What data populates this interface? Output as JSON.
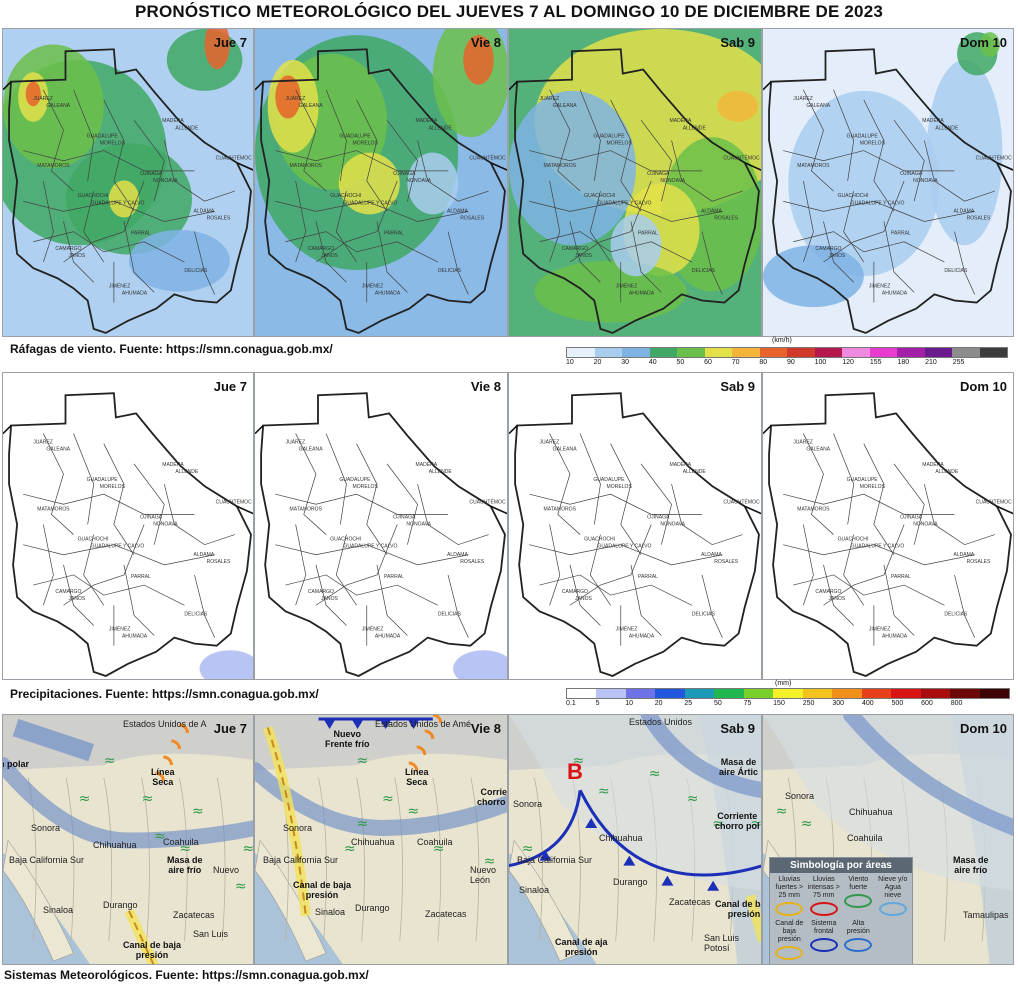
{
  "title": "PRONÓSTICO METEOROLÓGICO DEL JUEVES 7 AL DOMINGO 10 DE DICIEMBRE DE 2023",
  "days": [
    "Jue 7",
    "Vie 8",
    "Sab 9",
    "Dom 10"
  ],
  "sections": {
    "wind": {
      "source": "Ráfagas de viento.  Fuente: https://smn.conagua.gob.mx/",
      "unit": "(km/h)",
      "scale": [
        {
          "label": "10",
          "color": "#e6f0fa"
        },
        {
          "label": "20",
          "color": "#a9cdee"
        },
        {
          "label": "30",
          "color": "#7fb3e4"
        },
        {
          "label": "40",
          "color": "#3fa864"
        },
        {
          "label": "50",
          "color": "#6cbf4a"
        },
        {
          "label": "60",
          "color": "#e3e04a"
        },
        {
          "label": "70",
          "color": "#f2b53a"
        },
        {
          "label": "80",
          "color": "#e8632c"
        },
        {
          "label": "90",
          "color": "#d13a2a"
        },
        {
          "label": "100",
          "color": "#b5184f"
        },
        {
          "label": "120",
          "color": "#f08ae0"
        },
        {
          "label": "155",
          "color": "#e83bd0"
        },
        {
          "label": "180",
          "color": "#a21fa8"
        },
        {
          "label": "210",
          "color": "#6a1a8a"
        },
        {
          "label": "255",
          "color": "#8c8c8c"
        },
        {
          "label": "",
          "color": "#3c3c3c"
        }
      ]
    },
    "precip": {
      "source": "Precipitaciones.  Fuente: https://smn.conagua.gob.mx/",
      "unit": "(mm)",
      "scale": [
        {
          "label": "0.1",
          "color": "#ffffff"
        },
        {
          "label": "5",
          "color": "#b8c4f4"
        },
        {
          "label": "10",
          "color": "#6f73e8"
        },
        {
          "label": "20",
          "color": "#2457e0"
        },
        {
          "label": "25",
          "color": "#1c9bb8"
        },
        {
          "label": "50",
          "color": "#20b84e"
        },
        {
          "label": "75",
          "color": "#7ad02a"
        },
        {
          "label": "150",
          "color": "#f4f02a"
        },
        {
          "label": "250",
          "color": "#f4c21c"
        },
        {
          "label": "300",
          "color": "#f0901a"
        },
        {
          "label": "400",
          "color": "#e8401a"
        },
        {
          "label": "500",
          "color": "#d81414"
        },
        {
          "label": "600",
          "color": "#a80c0c"
        },
        {
          "label": "800",
          "color": "#6e0808"
        },
        {
          "label": "",
          "color": "#3e0404"
        }
      ]
    },
    "systems": {
      "source": "Sistemas Meteorológicos.    Fuente: https://smn.conagua.gob.mx/",
      "panels": [
        {
          "labels": [
            {
              "text": "Estados Unidos de A",
              "kind": "region"
            },
            {
              "text": "n polar",
              "kind": "bold"
            },
            {
              "text": "Línea\nSeca",
              "kind": "bold"
            },
            {
              "text": "Sonora",
              "kind": "region"
            },
            {
              "text": "Chihuahua",
              "kind": "region"
            },
            {
              "text": "Coahuila",
              "kind": "region"
            },
            {
              "text": "Masa de\naire frío",
              "kind": "bold"
            },
            {
              "text": "Nuevo",
              "kind": "region"
            },
            {
              "text": "Sinaloa",
              "kind": "region"
            },
            {
              "text": "Durango",
              "kind": "region"
            },
            {
              "text": "Zacatecas",
              "kind": "region"
            },
            {
              "text": "Canal de baja\npresión",
              "kind": "bold"
            },
            {
              "text": "San Luis",
              "kind": "region"
            },
            {
              "text": "Baja California Sur",
              "kind": "region"
            }
          ]
        },
        {
          "labels": [
            {
              "text": "Estados Unidos de Amé",
              "kind": "region"
            },
            {
              "text": "Nuevo\nFrente frío",
              "kind": "bold"
            },
            {
              "text": "Corrient\nchorro po",
              "kind": "bold"
            },
            {
              "text": "Línea\nSeca",
              "kind": "bold"
            },
            {
              "text": "Sonora",
              "kind": "region"
            },
            {
              "text": "Chihuahua",
              "kind": "region"
            },
            {
              "text": "Coahuila",
              "kind": "region"
            },
            {
              "text": "Nuevo\nLeón",
              "kind": "region"
            },
            {
              "text": "Sinaloa",
              "kind": "region"
            },
            {
              "text": "Durango",
              "kind": "region"
            },
            {
              "text": "Zacatecas",
              "kind": "region"
            },
            {
              "text": "Canal de baja\npresión",
              "kind": "bold"
            },
            {
              "text": "Baja California Sur",
              "kind": "region"
            }
          ]
        },
        {
          "labels": [
            {
              "text": "Estados Unidos",
              "kind": "region"
            },
            {
              "text": "Masa de\naire Ártic",
              "kind": "bold"
            },
            {
              "text": "B",
              "kind": "low"
            },
            {
              "text": "Sonora",
              "kind": "region"
            },
            {
              "text": "Chihuahua",
              "kind": "region"
            },
            {
              "text": "Corriente\nchorro pol",
              "kind": "bold"
            },
            {
              "text": "Sinaloa",
              "kind": "region"
            },
            {
              "text": "Durango",
              "kind": "region"
            },
            {
              "text": "Zacatecas",
              "kind": "region"
            },
            {
              "text": "Canal de baja\npresión",
              "kind": "bold"
            },
            {
              "text": "Canal de aja\npresión",
              "kind": "bold"
            },
            {
              "text": "San Luis\nPotosí",
              "kind": "region"
            },
            {
              "text": "Baja California Sur",
              "kind": "region"
            }
          ]
        },
        {
          "labels": [
            {
              "text": "Sonora",
              "kind": "region"
            },
            {
              "text": "Chihuahua",
              "kind": "region"
            },
            {
              "text": "Coahuila",
              "kind": "region"
            },
            {
              "text": "Masa de\naire frío",
              "kind": "bold"
            },
            {
              "text": "Tamaulipas",
              "kind": "region"
            }
          ],
          "legend": {
            "title": "Simbología por áreas",
            "items": [
              "Lluvias fuertes > 25 mm",
              "Lluvias intensas > 75 mm",
              "Viento fuerte",
              "Nieve y/o Agua nieve",
              "Canal de baja presión",
              "Sistema frontal",
              "Alta presión"
            ]
          }
        }
      ]
    }
  }
}
